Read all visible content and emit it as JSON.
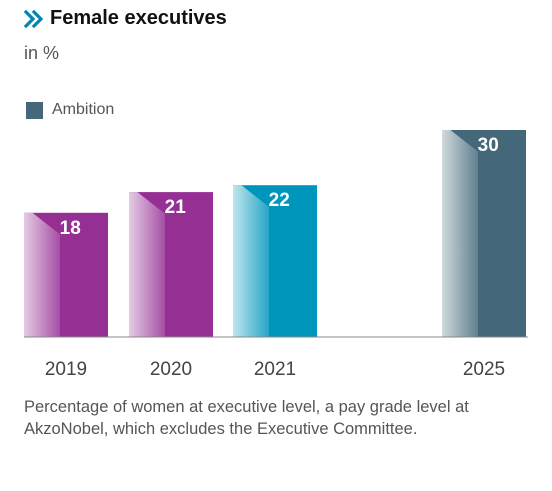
{
  "header": {
    "title": "Female executives",
    "subtitle": "in %"
  },
  "legend": {
    "label": "Ambition",
    "color": "#44687a"
  },
  "caption": "Percentage of women at executive level, a pay grade level at AkzoNobel, which excludes the Executive Committee.",
  "colors": {
    "chevron": "#0086b3",
    "purple": "#952f94",
    "teal": "#0096bc",
    "ambition": "#44687a"
  },
  "chart_data": {
    "type": "bar",
    "title": "Female executives",
    "subtitle": "in %",
    "categories": [
      "2019",
      "2020",
      "2021",
      "2025"
    ],
    "values": [
      18,
      21,
      22,
      30
    ],
    "bar_colors": [
      "#952f94",
      "#952f94",
      "#0096bc",
      "#44687a"
    ],
    "ambition_category": "2025",
    "ylim": [
      0,
      30
    ],
    "grid": false,
    "legend": {
      "placement": "top-left",
      "entries": [
        "Ambition"
      ]
    }
  }
}
